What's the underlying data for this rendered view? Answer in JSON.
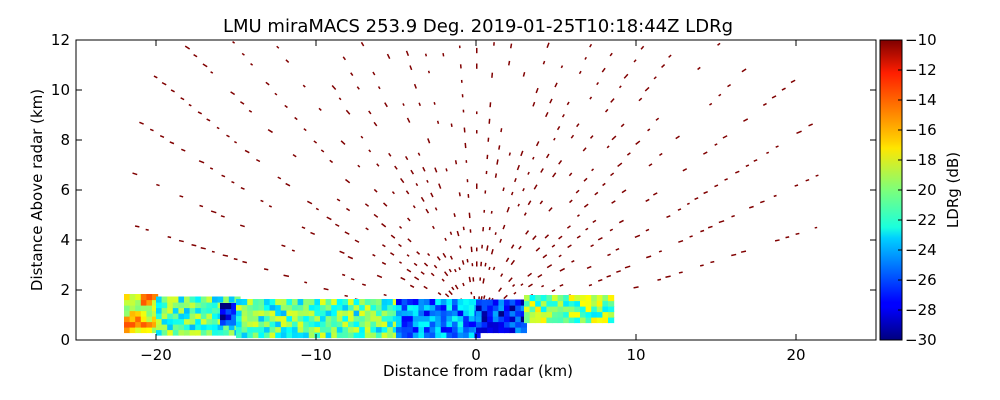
{
  "chart_data": {
    "type": "heatmap",
    "title": "LMU miraMACS 253.9 Deg. 2019-01-25T10:18:44Z  LDRg",
    "xlabel": "Distance from radar (km)",
    "ylabel": "Distance Above radar  (km)",
    "xlim": [
      -25,
      25
    ],
    "ylim": [
      0,
      12
    ],
    "x_ticks": [
      -20,
      -10,
      0,
      10,
      20
    ],
    "y_ticks": [
      0,
      2,
      4,
      6,
      8,
      10,
      12
    ],
    "x_tick_labels": [
      "−20",
      "−10",
      "0",
      "10",
      "20"
    ],
    "y_tick_labels": [
      "0",
      "2",
      "4",
      "6",
      "8",
      "10",
      "12"
    ],
    "colorbar": {
      "label": "LDRg (dB)",
      "range": [
        -30,
        -10
      ],
      "colormap": "jet",
      "ticks": [
        -10,
        -12,
        -14,
        -16,
        -18,
        -20,
        -22,
        -24,
        -26,
        -28,
        -30
      ],
      "tick_labels": [
        "−10",
        "−12",
        "−14",
        "−16",
        "−18",
        "−20",
        "−22",
        "−24",
        "−26",
        "−28",
        "−30"
      ]
    },
    "scan": {
      "radar_position_km": [
        0,
        0
      ],
      "max_range_km": 22,
      "sparse_high_value_dB": -10
    },
    "regions": [
      {
        "x_range": [
          -22,
          -20
        ],
        "y_range": [
          0.3,
          1.7
        ],
        "ldr_dB": -17
      },
      {
        "x_range": [
          -20,
          -15
        ],
        "y_range": [
          0.2,
          1.6
        ],
        "ldr_dB": -21
      },
      {
        "x_range": [
          -16,
          -15
        ],
        "y_range": [
          0.6,
          1.3
        ],
        "ldr_dB": -28
      },
      {
        "x_range": [
          -15,
          -5
        ],
        "y_range": [
          0.1,
          1.5
        ],
        "ldr_dB": -21
      },
      {
        "x_range": [
          -5,
          0
        ],
        "y_range": [
          0.1,
          1.5
        ],
        "ldr_dB": -25
      },
      {
        "x_range": [
          0,
          3
        ],
        "y_range": [
          0.3,
          1.5
        ],
        "ldr_dB": -27
      },
      {
        "x_range": [
          3,
          8.5
        ],
        "y_range": [
          0.7,
          1.6
        ],
        "ldr_dB": -20
      }
    ]
  }
}
